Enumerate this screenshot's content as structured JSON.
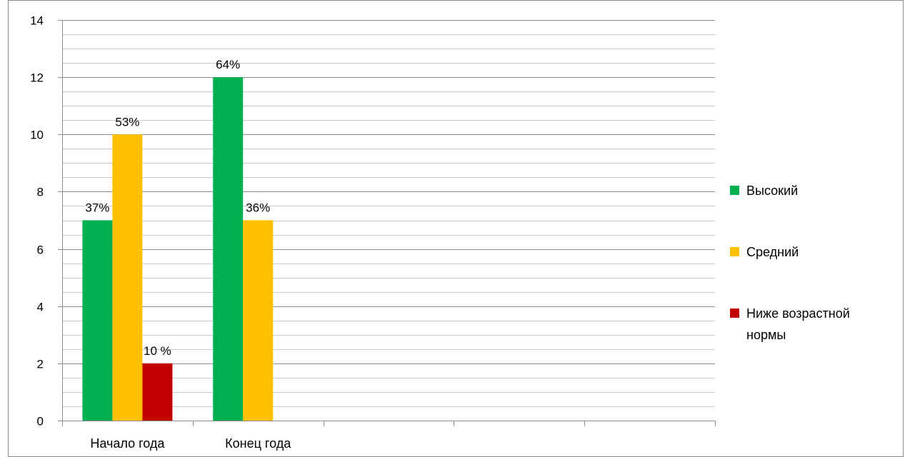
{
  "chart_data": {
    "type": "bar",
    "title": "",
    "xlabel": "",
    "ylabel": "",
    "ylim": [
      0,
      14
    ],
    "yticks": [
      0,
      2,
      4,
      6,
      8,
      10,
      12,
      14
    ],
    "y_minor_step": 0.5,
    "categories": [
      "Начало года",
      "Конец года",
      "",
      "",
      ""
    ],
    "grid": true,
    "legend_position": "right",
    "series": [
      {
        "name": "Высокий",
        "color": "#00b050",
        "values": [
          7,
          12,
          null,
          null,
          null
        ],
        "labels": [
          "37%",
          "64%",
          "",
          "",
          ""
        ]
      },
      {
        "name": "Средний",
        "color": "#ffc000",
        "values": [
          10,
          7,
          null,
          null,
          null
        ],
        "labels": [
          "53%",
          "36%",
          "",
          "",
          ""
        ]
      },
      {
        "name": "Ниже возрастной нормы",
        "color": "#c00000",
        "values": [
          2,
          null,
          null,
          null,
          null
        ],
        "labels": [
          "10 %",
          "",
          "",
          "",
          ""
        ]
      }
    ],
    "legend_lines": [
      [
        "Высокий"
      ],
      [
        "Средний"
      ],
      [
        "Ниже возрастной",
        "нормы"
      ]
    ]
  }
}
